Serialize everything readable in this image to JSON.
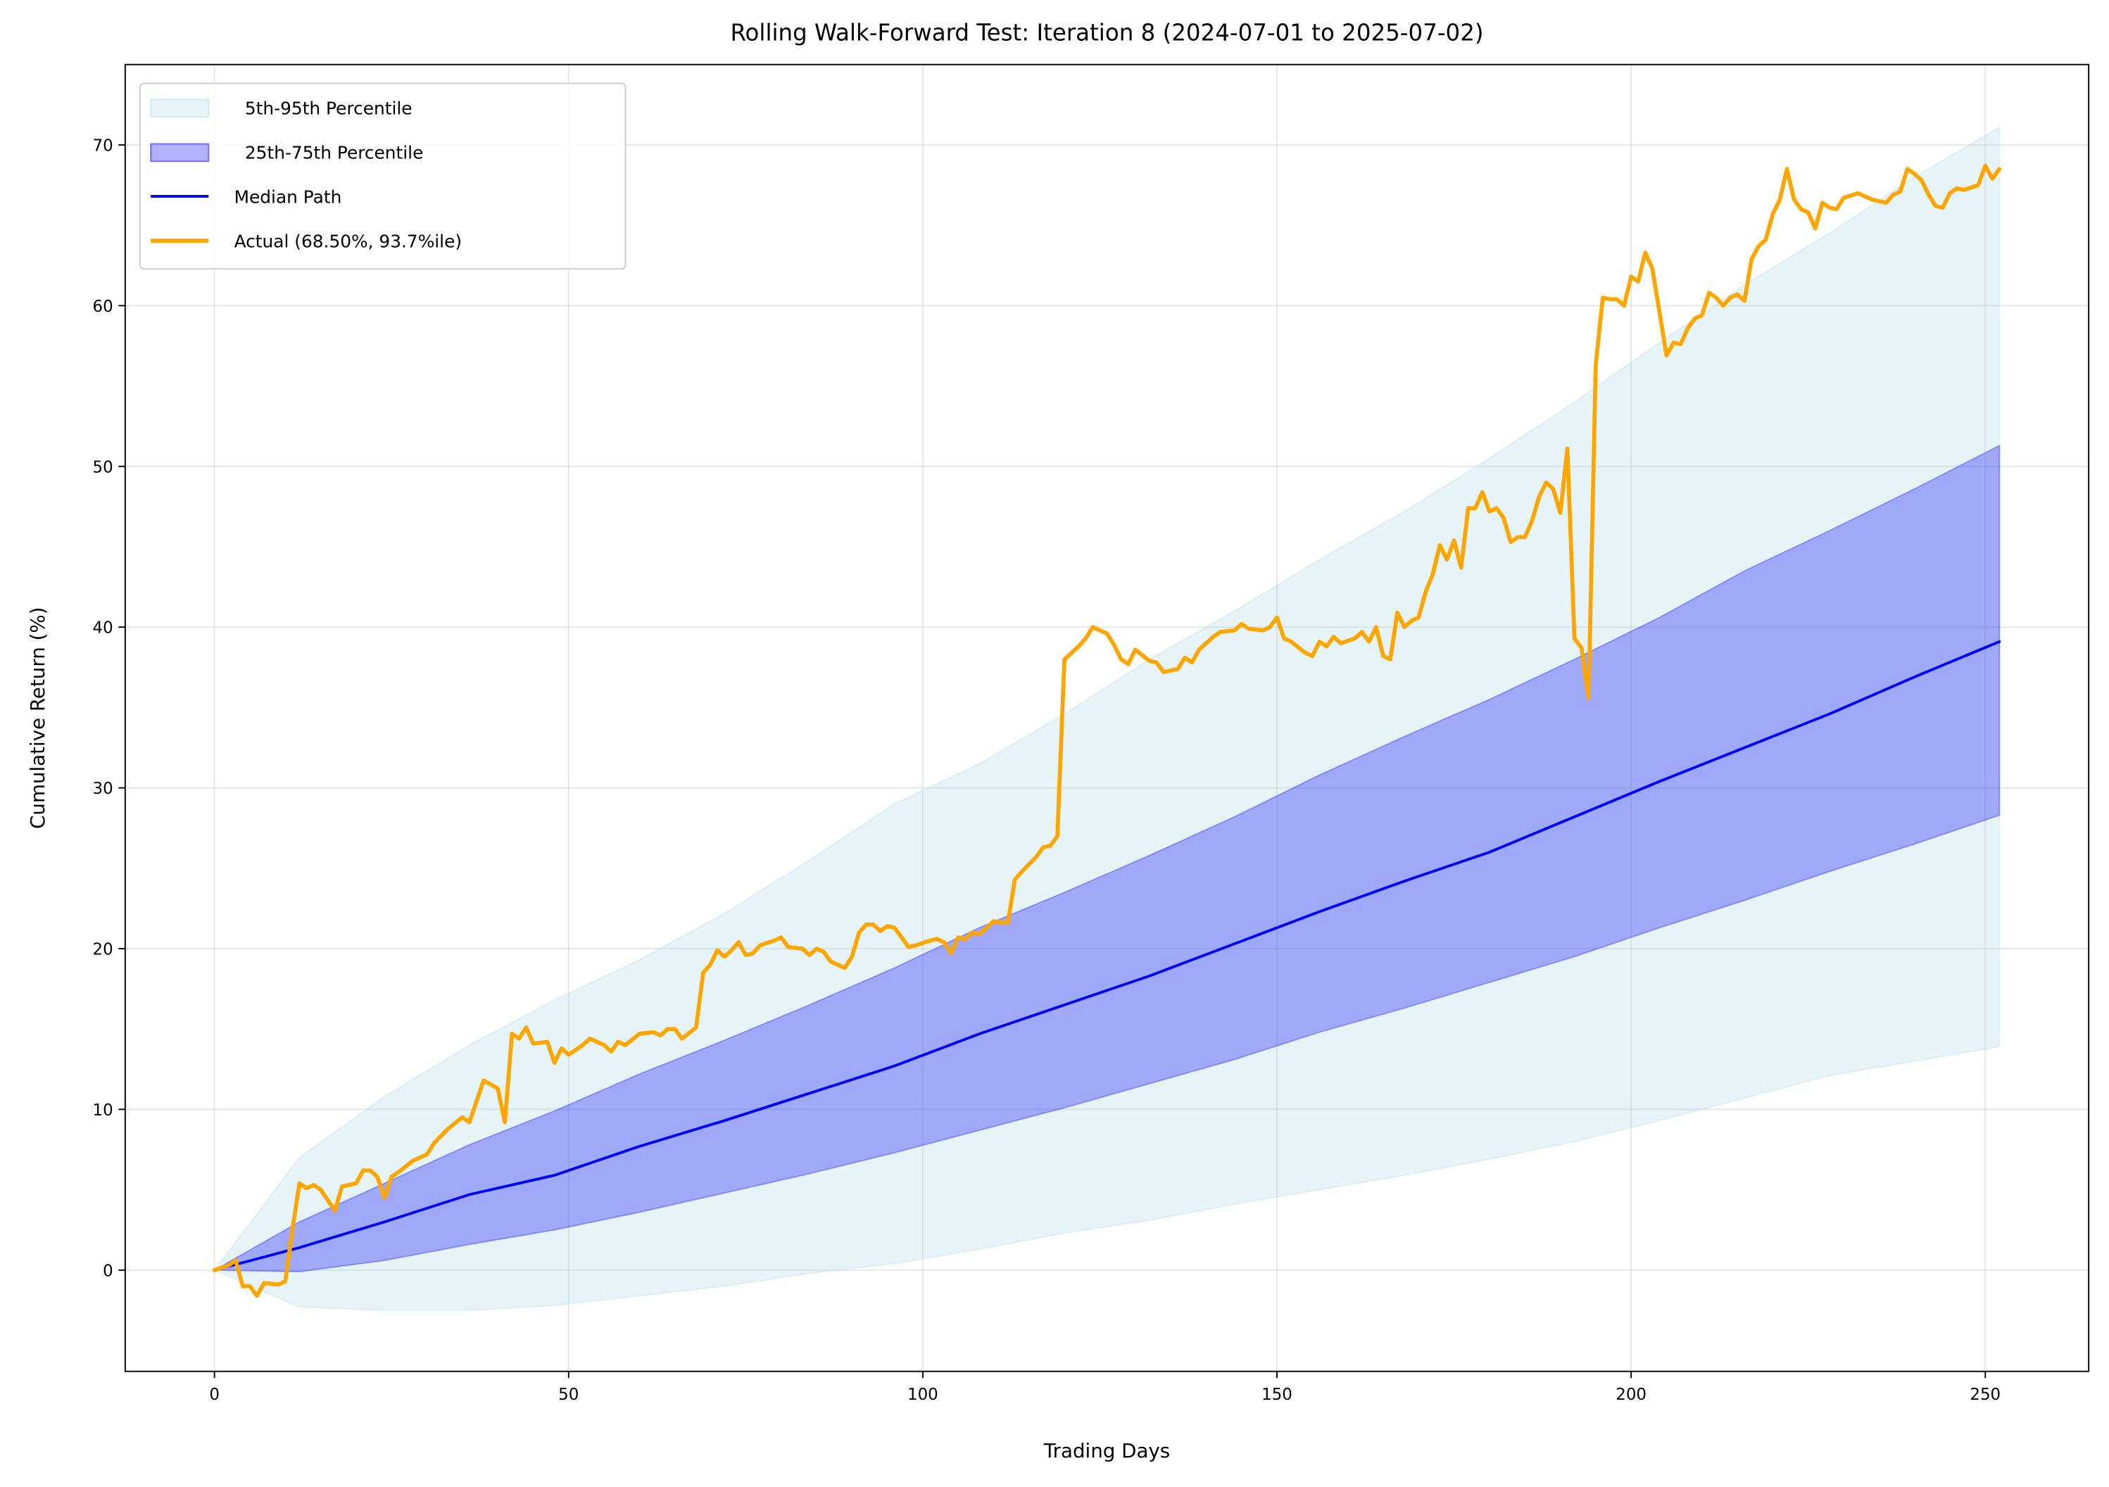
{
  "chart_data": {
    "type": "line",
    "title": "Rolling Walk-Forward Test: Iteration 8 (2024-07-01 to 2025-07-02)",
    "xlabel": "Trading Days",
    "ylabel": "Cumulative Return (%)",
    "xlim": [
      -12.6,
      264.6
    ],
    "ylim": [
      -6.3,
      75.0
    ],
    "xticks": [
      0,
      50,
      100,
      150,
      200,
      250
    ],
    "yticks": [
      0,
      10,
      20,
      30,
      40,
      50,
      60,
      70
    ],
    "grid": true,
    "legend": "upper left",
    "series": [
      {
        "name": "5th-95th Percentile",
        "kind": "band",
        "color": "#add8e6",
        "opacity": 0.3,
        "x": [
          0,
          12,
          24,
          36,
          48,
          60,
          72,
          84,
          96,
          108,
          120,
          132,
          144,
          156,
          168,
          180,
          192,
          204,
          216,
          228,
          240,
          252
        ],
        "lower": [
          0,
          -2.3,
          -2.5,
          -2.5,
          -2.2,
          -1.6,
          -1.0,
          -0.2,
          0.4,
          1.3,
          2.3,
          3.1,
          4.1,
          5.0,
          5.9,
          6.9,
          8.0,
          9.3,
          10.7,
          12.1,
          13.0,
          13.9
        ],
        "upper": [
          0,
          7.0,
          10.8,
          14.0,
          16.8,
          19.3,
          22.2,
          25.5,
          29.0,
          31.5,
          34.6,
          38.0,
          41.0,
          44.2,
          47.2,
          50.5,
          54.0,
          57.7,
          61.3,
          64.5,
          68.0,
          71.1
        ]
      },
      {
        "name": "25th-75th Percentile",
        "kind": "band",
        "color": "#0000ff",
        "opacity": 0.3,
        "x": [
          0,
          12,
          24,
          36,
          48,
          60,
          72,
          84,
          96,
          108,
          120,
          132,
          144,
          156,
          168,
          180,
          192,
          204,
          216,
          228,
          240,
          252
        ],
        "lower": [
          0,
          -0.1,
          0.6,
          1.6,
          2.5,
          3.6,
          4.8,
          6.0,
          7.3,
          8.7,
          10.1,
          11.6,
          13.1,
          14.8,
          16.3,
          17.9,
          19.5,
          21.3,
          23.0,
          24.8,
          26.5,
          28.3
        ],
        "upper": [
          0,
          3.0,
          5.4,
          7.8,
          9.9,
          12.2,
          14.3,
          16.5,
          18.8,
          21.3,
          23.5,
          25.8,
          28.2,
          30.8,
          33.2,
          35.5,
          38.0,
          40.6,
          43.5,
          46.0,
          48.6,
          51.3
        ]
      },
      {
        "name": "Median Path",
        "kind": "line",
        "color": "#0000ff",
        "width": 2,
        "x": [
          0,
          12,
          24,
          36,
          48,
          60,
          72,
          84,
          96,
          108,
          120,
          132,
          144,
          156,
          168,
          180,
          192,
          204,
          216,
          228,
          240,
          252
        ],
        "values": [
          0,
          1.4,
          3.0,
          4.7,
          5.9,
          7.7,
          9.3,
          11.0,
          12.7,
          14.7,
          16.5,
          18.3,
          20.3,
          22.3,
          24.2,
          26.0,
          28.2,
          30.4,
          32.5,
          34.6,
          36.9,
          39.1
        ]
      },
      {
        "name": "Actual (68.50%, 93.7%ile)",
        "kind": "line",
        "color": "#ffa500",
        "width": 3,
        "x": [
          0,
          2,
          3,
          4,
          5,
          6,
          7,
          9,
          10,
          11,
          12,
          13,
          14,
          15,
          17,
          18,
          20,
          21,
          22,
          23,
          24,
          25,
          26,
          28,
          30,
          31,
          33,
          35,
          36,
          38,
          40,
          41,
          42,
          43,
          44,
          45,
          47,
          48,
          49,
          50,
          52,
          53,
          55,
          56,
          57,
          58,
          60,
          62,
          63,
          64,
          65,
          66,
          68,
          69,
          70,
          71,
          72,
          73,
          74,
          75,
          76,
          77,
          79,
          80,
          81,
          83,
          84,
          85,
          86,
          87,
          89,
          90,
          91,
          92,
          93,
          94,
          95,
          96,
          98,
          99,
          101,
          102,
          103,
          104,
          105,
          106,
          107,
          108,
          109,
          110,
          112,
          113,
          114,
          116,
          117,
          118,
          119,
          120,
          121,
          122,
          123,
          124,
          126,
          127,
          128,
          129,
          130,
          132,
          133,
          134,
          136,
          137,
          138,
          139,
          141,
          142,
          144,
          145,
          146,
          148,
          149,
          150,
          151,
          152,
          154,
          155,
          156,
          157,
          158,
          159,
          161,
          162,
          163,
          164,
          165,
          166,
          167,
          168,
          169,
          170,
          171,
          172,
          173,
          174,
          175,
          176,
          177,
          178,
          179,
          180,
          181,
          182,
          183,
          184,
          185,
          186,
          187,
          188,
          189,
          190,
          191,
          192,
          193,
          194,
          195,
          196,
          197,
          198,
          199,
          200,
          201,
          202,
          203,
          204,
          205,
          206,
          207,
          208,
          209,
          210,
          211,
          212,
          213,
          214,
          215,
          216,
          217,
          218,
          219,
          220,
          221,
          222,
          223,
          224,
          225,
          226,
          227,
          228,
          229,
          230,
          232,
          234,
          236,
          237,
          238,
          239,
          240,
          241,
          242,
          243,
          244,
          245,
          246,
          247,
          249,
          250,
          251,
          252
        ],
        "values": [
          0,
          0.3,
          0.6,
          -1.0,
          -1.0,
          -1.6,
          -0.8,
          -0.9,
          -0.7,
          2.5,
          5.4,
          5.1,
          5.3,
          5.0,
          3.7,
          5.2,
          5.4,
          6.2,
          6.2,
          5.8,
          4.5,
          5.8,
          6.1,
          6.8,
          7.2,
          7.9,
          8.8,
          9.5,
          9.2,
          11.8,
          11.3,
          9.2,
          14.7,
          14.4,
          15.1,
          14.1,
          14.2,
          12.9,
          13.8,
          13.4,
          14.0,
          14.4,
          14.0,
          13.6,
          14.2,
          14.0,
          14.7,
          14.8,
          14.6,
          15.0,
          15.0,
          14.4,
          15.1,
          18.5,
          19.0,
          19.9,
          19.5,
          19.9,
          20.4,
          19.6,
          19.7,
          20.2,
          20.5,
          20.7,
          20.1,
          20.0,
          19.6,
          20.0,
          19.8,
          19.2,
          18.8,
          19.5,
          21.0,
          21.5,
          21.5,
          21.1,
          21.4,
          21.3,
          20.1,
          20.2,
          20.5,
          20.6,
          20.4,
          19.7,
          20.7,
          20.6,
          21.0,
          20.9,
          21.3,
          21.7,
          21.6,
          24.3,
          24.8,
          25.7,
          26.3,
          26.4,
          27.0,
          38.0,
          38.4,
          38.8,
          39.3,
          40.0,
          39.6,
          38.9,
          38.0,
          37.7,
          38.6,
          37.9,
          37.8,
          37.2,
          37.4,
          38.1,
          37.8,
          38.6,
          39.4,
          39.7,
          39.8,
          40.2,
          39.9,
          39.8,
          40.0,
          40.6,
          39.3,
          39.1,
          38.4,
          38.2,
          39.1,
          38.8,
          39.4,
          39.0,
          39.3,
          39.7,
          39.1,
          40.0,
          38.2,
          38.0,
          40.9,
          40.0,
          40.4,
          40.6,
          42.2,
          43.3,
          45.1,
          44.2,
          45.4,
          43.7,
          47.4,
          47.4,
          48.4,
          47.2,
          47.4,
          46.8,
          45.3,
          45.6,
          45.6,
          46.6,
          48.1,
          49.0,
          48.6,
          47.1,
          51.1,
          39.3,
          38.7,
          35.6,
          56.3,
          60.5,
          60.4,
          60.4,
          60.0,
          61.8,
          61.5,
          63.3,
          62.3,
          59.6,
          56.9,
          57.7,
          57.6,
          58.6,
          59.2,
          59.4,
          60.8,
          60.5,
          60.0,
          60.5,
          60.7,
          60.3,
          62.9,
          63.7,
          64.1,
          65.7,
          66.6,
          68.5,
          66.6,
          66.0,
          65.8,
          64.8,
          66.4,
          66.1,
          66.0,
          66.7,
          67.0,
          66.6,
          66.4,
          66.9,
          67.1,
          68.5,
          68.2,
          67.8,
          66.9,
          66.2,
          66.1,
          67.0,
          67.3,
          67.2,
          67.5,
          68.7,
          67.9,
          68.5
        ]
      }
    ]
  }
}
